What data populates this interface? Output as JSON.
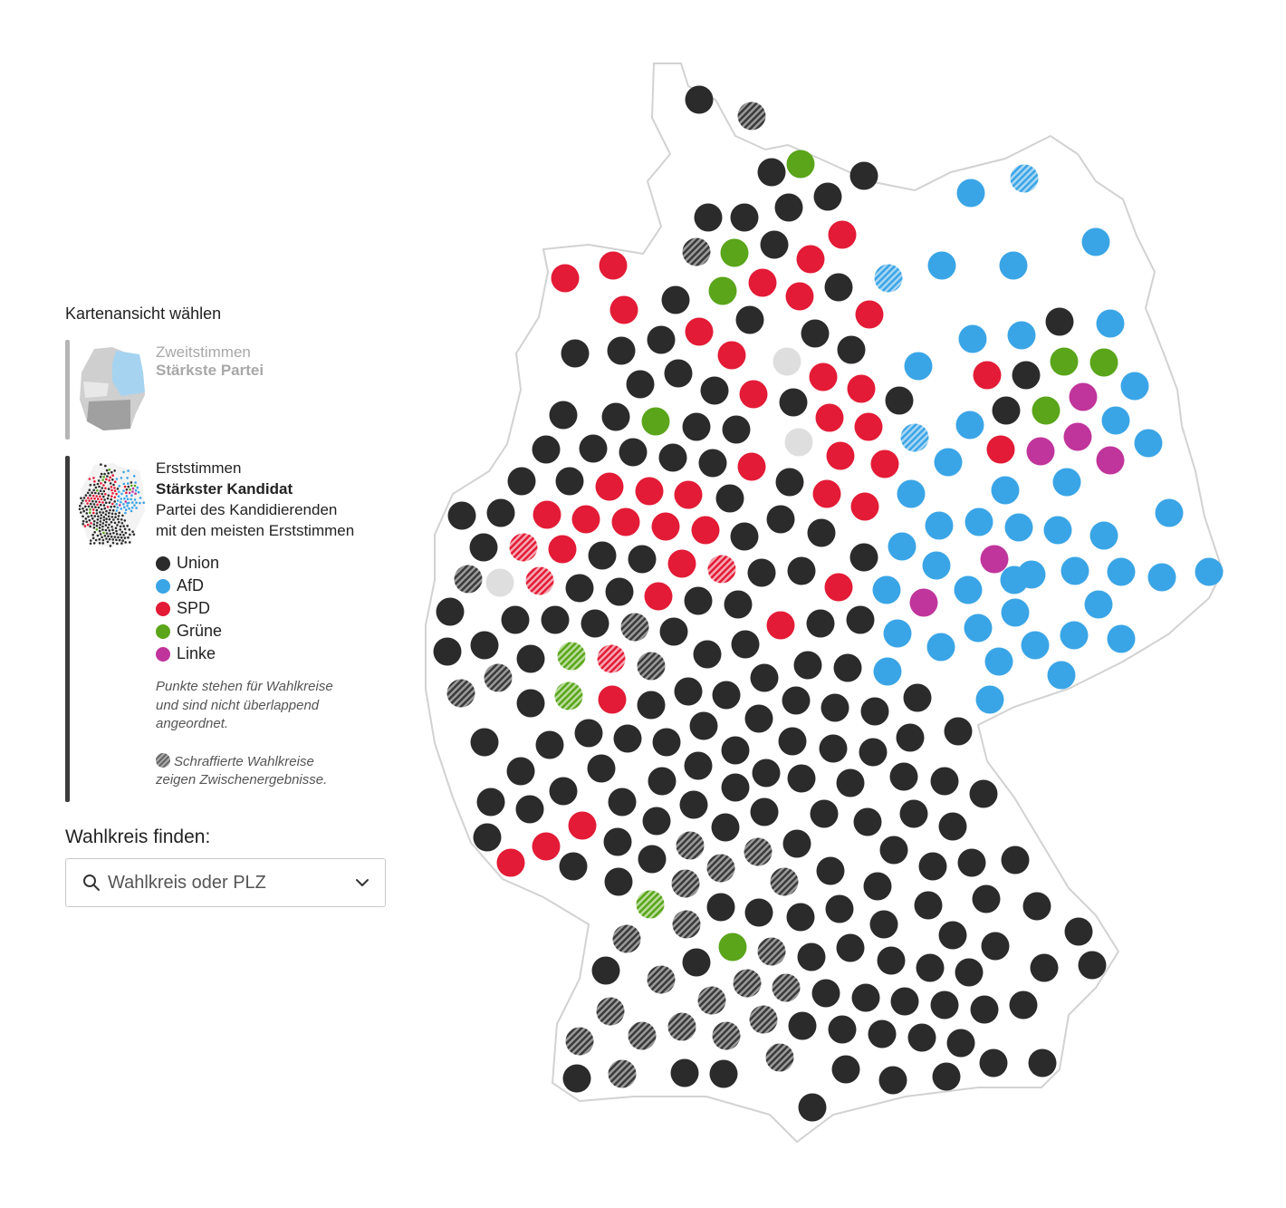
{
  "panel": {
    "title": "Kartenansicht wählen",
    "option1": {
      "line1": "Zweitstimmen",
      "line2": "Stärkste Partei"
    },
    "option2": {
      "line1": "Erststimmen",
      "line2": "Stärkster Kandidat",
      "line3": "Partei des Kandidierenden",
      "line4": "mit den meisten Erststimmen"
    },
    "legend": [
      {
        "label": "Union",
        "color": "#2b2b2b"
      },
      {
        "label": "AfD",
        "color": "#3aa5e6"
      },
      {
        "label": "SPD",
        "color": "#e31b36"
      },
      {
        "label": "Grüne",
        "color": "#5aa51a"
      },
      {
        "label": "Linke",
        "color": "#c0359b"
      }
    ],
    "note1": [
      "Punkte stehen für Wahlkreise",
      "und sind nicht überlappend",
      "angeordnet."
    ],
    "note2": [
      "Schraffierte Wahlkreise",
      "zeigen Zwischenergebnisse."
    ]
  },
  "find": {
    "label": "Wahlkreis finden:",
    "placeholder": "Wahlkreis oder PLZ"
  },
  "icons": {
    "search": "search-icon",
    "dropdown": "chevron-down-icon"
  },
  "colors": {
    "U": "#2b2b2b",
    "A": "#3aa5e6",
    "S": "#e31b36",
    "G": "#5aa51a",
    "L": "#c0359b",
    "N": "#dedede"
  }
}
